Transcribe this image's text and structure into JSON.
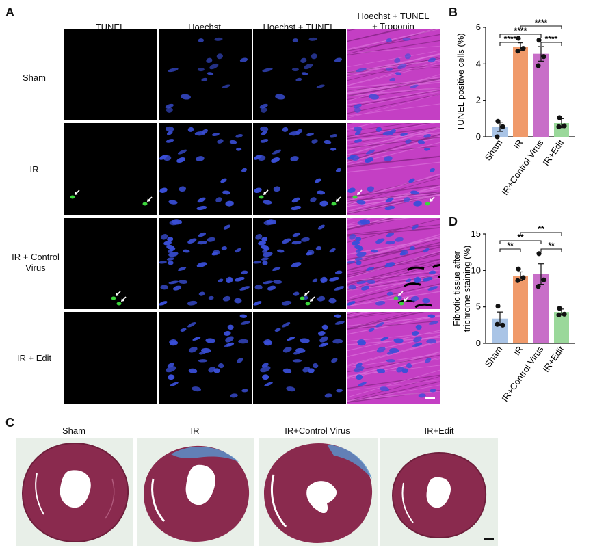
{
  "panels": {
    "a": {
      "letter": "A",
      "columns": [
        "TUNEL",
        "Hoechst",
        "Hoechst + TUNEL",
        "Hoechst + TUNEL\n+ Troponin"
      ],
      "rows": [
        "Sham",
        "IR",
        "IR + Control\nVirus",
        "IR + Edit"
      ],
      "colors": {
        "nuclei": "#3a4fd8",
        "tunel": "#3cd63c",
        "troponin": "#c43fc4"
      }
    },
    "b": {
      "letter": "B"
    },
    "c": {
      "letter": "C",
      "labels": [
        "Sham",
        "IR",
        "IR+Control Virus",
        "IR+Edit"
      ],
      "colors": {
        "tissue": "#8a2a4e",
        "fibrosis": "#5b8fc9",
        "background": "#e8efe8"
      }
    },
    "d": {
      "letter": "D"
    }
  },
  "chart_data": [
    {
      "type": "bar",
      "panel": "B",
      "categories": [
        "Sham",
        "IR",
        "IR+Control Virus",
        "IR+Edit"
      ],
      "values": [
        0.55,
        4.95,
        4.55,
        0.75
      ],
      "errors": [
        0.25,
        0.2,
        0.4,
        0.25
      ],
      "points": [
        [
          0.85,
          0.55,
          0.0
        ],
        [
          5.4,
          4.85,
          4.7
        ],
        [
          5.3,
          4.4,
          3.9
        ],
        [
          1.05,
          0.6,
          0.55
        ]
      ],
      "colors": [
        "#a9c4e6",
        "#f09a6a",
        "#c86ec8",
        "#9ad89a"
      ],
      "ylabel": "TUNEL positive cells (%)",
      "ylim": [
        0,
        6
      ],
      "yticks": [
        0,
        2,
        4,
        6
      ],
      "significance": [
        {
          "from": 0,
          "to": 1,
          "label": "****"
        },
        {
          "from": 0,
          "to": 2,
          "label": "****"
        },
        {
          "from": 1,
          "to": 3,
          "label": "****"
        },
        {
          "from": 2,
          "to": 3,
          "label": "****"
        }
      ]
    },
    {
      "type": "bar",
      "panel": "D",
      "categories": [
        "Sham",
        "IR",
        "IR+Control Virus",
        "IR+Edit"
      ],
      "values": [
        3.4,
        9.2,
        9.5,
        4.3
      ],
      "errors": [
        0.9,
        0.6,
        1.4,
        0.4
      ],
      "points": [
        [
          5.1,
          2.5,
          2.6
        ],
        [
          10.2,
          9.0,
          8.6
        ],
        [
          12.3,
          8.7,
          7.8
        ],
        [
          4.8,
          4.0,
          3.9
        ]
      ],
      "colors": [
        "#a9c4e6",
        "#f09a6a",
        "#c86ec8",
        "#9ad89a"
      ],
      "ylabel": "Fibrotic tissue after\ntrichrome staining (%)",
      "ylim": [
        0,
        15
      ],
      "yticks": [
        0,
        5,
        10,
        15
      ],
      "significance": [
        {
          "from": 0,
          "to": 1,
          "label": "**"
        },
        {
          "from": 0,
          "to": 2,
          "label": "**"
        },
        {
          "from": 1,
          "to": 3,
          "label": "**"
        },
        {
          "from": 2,
          "to": 3,
          "label": "**"
        }
      ]
    }
  ]
}
